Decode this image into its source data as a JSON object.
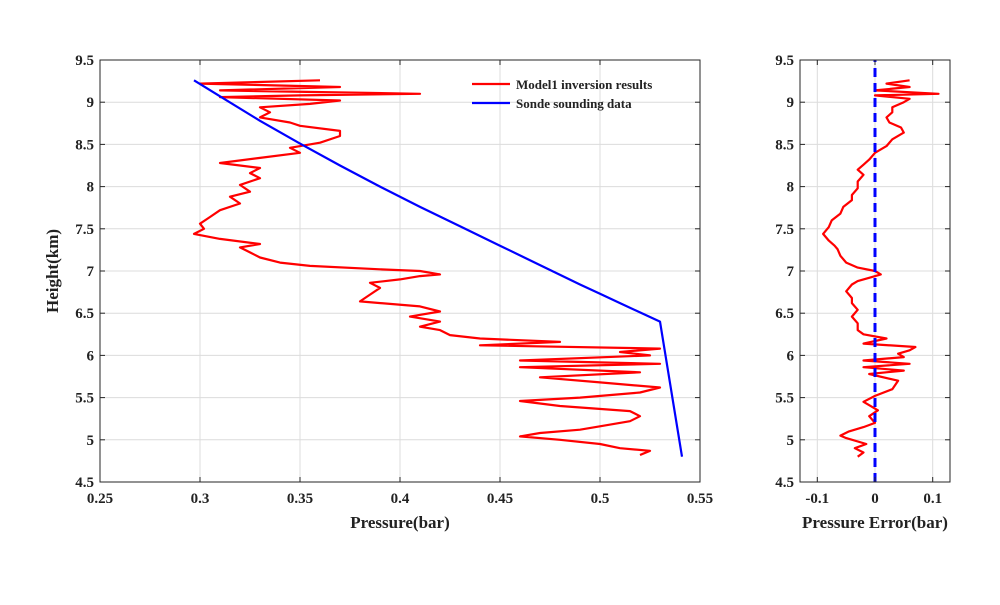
{
  "chart_data": [
    {
      "type": "line",
      "xlabel": "Pressure(bar)",
      "ylabel": "Height(km)",
      "xlim": [
        0.25,
        0.55
      ],
      "ylim": [
        4.5,
        9.5
      ],
      "xticks": [
        0.25,
        0.3,
        0.35,
        0.4,
        0.45,
        0.5,
        0.55
      ],
      "xtick_labels": [
        "0.25",
        "0.3",
        "0.35",
        "0.4",
        "0.45",
        "0.5",
        "0.55"
      ],
      "yticks": [
        4.5,
        5,
        5.5,
        6,
        6.5,
        7,
        7.5,
        8,
        8.5,
        9,
        9.5
      ],
      "ytick_labels": [
        "4.5",
        "5",
        "5.5",
        "6",
        "6.5",
        "7",
        "7.5",
        "8",
        "8.5",
        "9",
        "9.5"
      ],
      "grid": true,
      "legend_position": "top-right",
      "series": [
        {
          "name": "Model1 inversion results",
          "color": "#ff0000",
          "points": [
            [
              0.52,
              4.82
            ],
            [
              0.525,
              4.87
            ],
            [
              0.51,
              4.9
            ],
            [
              0.5,
              4.95
            ],
            [
              0.48,
              5.0
            ],
            [
              0.46,
              5.04
            ],
            [
              0.47,
              5.08
            ],
            [
              0.49,
              5.12
            ],
            [
              0.5,
              5.16
            ],
            [
              0.515,
              5.22
            ],
            [
              0.52,
              5.28
            ],
            [
              0.515,
              5.34
            ],
            [
              0.48,
              5.4
            ],
            [
              0.46,
              5.46
            ],
            [
              0.49,
              5.5
            ],
            [
              0.52,
              5.56
            ],
            [
              0.53,
              5.62
            ],
            [
              0.5,
              5.68
            ],
            [
              0.47,
              5.74
            ],
            [
              0.52,
              5.8
            ],
            [
              0.46,
              5.86
            ],
            [
              0.53,
              5.9
            ],
            [
              0.46,
              5.94
            ],
            [
              0.525,
              6.0
            ],
            [
              0.51,
              6.04
            ],
            [
              0.53,
              6.08
            ],
            [
              0.44,
              6.12
            ],
            [
              0.48,
              6.16
            ],
            [
              0.44,
              6.2
            ],
            [
              0.425,
              6.24
            ],
            [
              0.42,
              6.3
            ],
            [
              0.41,
              6.34
            ],
            [
              0.42,
              6.4
            ],
            [
              0.405,
              6.46
            ],
            [
              0.42,
              6.52
            ],
            [
              0.41,
              6.58
            ],
            [
              0.38,
              6.64
            ],
            [
              0.385,
              6.72
            ],
            [
              0.39,
              6.8
            ],
            [
              0.385,
              6.86
            ],
            [
              0.4,
              6.9
            ],
            [
              0.41,
              6.94
            ],
            [
              0.42,
              6.96
            ],
            [
              0.41,
              7.0
            ],
            [
              0.39,
              7.02
            ],
            [
              0.355,
              7.06
            ],
            [
              0.34,
              7.1
            ],
            [
              0.33,
              7.16
            ],
            [
              0.325,
              7.22
            ],
            [
              0.32,
              7.28
            ],
            [
              0.33,
              7.32
            ],
            [
              0.31,
              7.38
            ],
            [
              0.297,
              7.44
            ],
            [
              0.302,
              7.5
            ],
            [
              0.3,
              7.56
            ],
            [
              0.305,
              7.64
            ],
            [
              0.31,
              7.72
            ],
            [
              0.32,
              7.8
            ],
            [
              0.315,
              7.88
            ],
            [
              0.325,
              7.94
            ],
            [
              0.32,
              8.02
            ],
            [
              0.33,
              8.1
            ],
            [
              0.325,
              8.16
            ],
            [
              0.33,
              8.22
            ],
            [
              0.31,
              8.28
            ],
            [
              0.33,
              8.34
            ],
            [
              0.35,
              8.4
            ],
            [
              0.345,
              8.46
            ],
            [
              0.36,
              8.52
            ],
            [
              0.37,
              8.6
            ],
            [
              0.37,
              8.66
            ],
            [
              0.35,
              8.72
            ],
            [
              0.345,
              8.76
            ],
            [
              0.33,
              8.82
            ],
            [
              0.335,
              8.88
            ],
            [
              0.33,
              8.94
            ],
            [
              0.355,
              8.98
            ],
            [
              0.37,
              9.02
            ],
            [
              0.31,
              9.06
            ],
            [
              0.35,
              9.08
            ],
            [
              0.41,
              9.1
            ],
            [
              0.31,
              9.14
            ],
            [
              0.37,
              9.18
            ],
            [
              0.3,
              9.22
            ],
            [
              0.36,
              9.26
            ]
          ]
        },
        {
          "name": "Sonde sounding data",
          "color": "#0000ff",
          "points": [
            [
              0.297,
              9.26
            ],
            [
              0.31,
              9.07
            ],
            [
              0.33,
              8.78
            ],
            [
              0.35,
              8.51
            ],
            [
              0.37,
              8.25
            ],
            [
              0.39,
              8.0
            ],
            [
              0.41,
              7.76
            ],
            [
              0.43,
              7.53
            ],
            [
              0.45,
              7.3
            ],
            [
              0.47,
              7.07
            ],
            [
              0.49,
              6.84
            ],
            [
              0.5,
              6.73
            ],
            [
              0.51,
              6.62
            ],
            [
              0.52,
              6.51
            ],
            [
              0.53,
              6.4
            ],
            [
              0.541,
              4.8
            ]
          ]
        }
      ]
    },
    {
      "type": "line",
      "xlabel": "Pressure Error(bar)",
      "ylabel": "",
      "xlim": [
        -0.13,
        0.13
      ],
      "ylim": [
        4.5,
        9.5
      ],
      "xticks": [
        -0.1,
        0,
        0.1
      ],
      "xtick_labels": [
        "-0.1",
        "0",
        "0.1"
      ],
      "yticks": [
        4.5,
        5,
        5.5,
        6,
        6.5,
        7,
        7.5,
        8,
        8.5,
        9,
        9.5
      ],
      "ytick_labels": [
        "4.5",
        "5",
        "5.5",
        "6",
        "6.5",
        "7",
        "7.5",
        "8",
        "8.5",
        "9",
        "9.5"
      ],
      "grid": true,
      "series": [
        {
          "color": "#ff0000",
          "points": [
            [
              -0.03,
              4.8
            ],
            [
              -0.02,
              4.85
            ],
            [
              -0.035,
              4.9
            ],
            [
              -0.015,
              4.95
            ],
            [
              -0.05,
              5.02
            ],
            [
              -0.06,
              5.05
            ],
            [
              -0.045,
              5.1
            ],
            [
              -0.02,
              5.15
            ],
            [
              0.0,
              5.2
            ],
            [
              -0.01,
              5.28
            ],
            [
              0.005,
              5.35
            ],
            [
              -0.02,
              5.45
            ],
            [
              0.0,
              5.52
            ],
            [
              0.03,
              5.6
            ],
            [
              0.04,
              5.7
            ],
            [
              -0.01,
              5.78
            ],
            [
              0.05,
              5.82
            ],
            [
              -0.02,
              5.86
            ],
            [
              0.06,
              5.9
            ],
            [
              -0.02,
              5.94
            ],
            [
              0.05,
              5.98
            ],
            [
              0.04,
              6.02
            ],
            [
              0.06,
              6.06
            ],
            [
              0.07,
              6.1
            ],
            [
              -0.02,
              6.14
            ],
            [
              0.02,
              6.2
            ],
            [
              -0.02,
              6.25
            ],
            [
              -0.03,
              6.3
            ],
            [
              -0.03,
              6.38
            ],
            [
              -0.04,
              6.46
            ],
            [
              -0.03,
              6.54
            ],
            [
              -0.04,
              6.62
            ],
            [
              -0.04,
              6.68
            ],
            [
              -0.05,
              6.76
            ],
            [
              -0.04,
              6.84
            ],
            [
              -0.03,
              6.88
            ],
            [
              -0.01,
              6.92
            ],
            [
              0.01,
              6.96
            ],
            [
              0.0,
              7.0
            ],
            [
              -0.03,
              7.04
            ],
            [
              -0.05,
              7.1
            ],
            [
              -0.06,
              7.18
            ],
            [
              -0.065,
              7.26
            ],
            [
              -0.07,
              7.3
            ],
            [
              -0.08,
              7.36
            ],
            [
              -0.09,
              7.44
            ],
            [
              -0.08,
              7.52
            ],
            [
              -0.075,
              7.6
            ],
            [
              -0.06,
              7.68
            ],
            [
              -0.055,
              7.76
            ],
            [
              -0.04,
              7.84
            ],
            [
              -0.04,
              7.9
            ],
            [
              -0.03,
              7.98
            ],
            [
              -0.03,
              8.06
            ],
            [
              -0.02,
              8.14
            ],
            [
              -0.03,
              8.2
            ],
            [
              -0.02,
              8.26
            ],
            [
              -0.01,
              8.32
            ],
            [
              0.0,
              8.4
            ],
            [
              0.02,
              8.48
            ],
            [
              0.03,
              8.56
            ],
            [
              0.05,
              8.64
            ],
            [
              0.045,
              8.7
            ],
            [
              0.025,
              8.76
            ],
            [
              0.02,
              8.82
            ],
            [
              0.03,
              8.88
            ],
            [
              0.03,
              8.94
            ],
            [
              0.05,
              9.0
            ],
            [
              0.06,
              9.04
            ],
            [
              0.0,
              9.08
            ],
            [
              0.11,
              9.1
            ],
            [
              0.0,
              9.14
            ],
            [
              0.06,
              9.18
            ],
            [
              0.02,
              9.22
            ],
            [
              0.06,
              9.26
            ]
          ]
        },
        {
          "color": "#0000ff",
          "points": [
            [
              0,
              4.5
            ],
            [
              0,
              9.5
            ]
          ],
          "style": "dashed"
        }
      ]
    }
  ]
}
